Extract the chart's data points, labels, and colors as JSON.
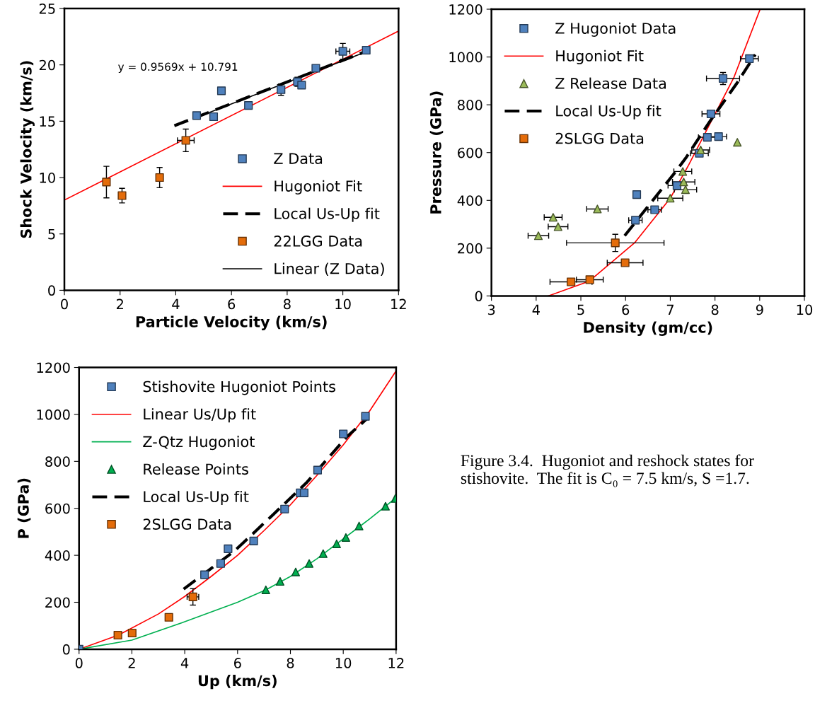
{
  "chart_data": [
    {
      "type": "scatter",
      "xlabel": "Particle Velocity (km/s)",
      "ylabel": "Shock Velocity (km/s)",
      "xlim": [
        0,
        12
      ],
      "xticks": [
        0,
        2,
        4,
        6,
        8,
        10,
        12
      ],
      "ylim": [
        0,
        25
      ],
      "yticks": [
        0,
        5,
        10,
        15,
        20,
        25
      ],
      "grid": false,
      "legend": "bottom right",
      "annotations": [
        "y = 0.9569x + 10.791"
      ],
      "series": [
        {
          "name": "Z Data",
          "type": "scatter",
          "marker": "square",
          "color": "#4f81bd",
          "x": [
            4.75,
            5.36,
            5.64,
            6.61,
            7.78,
            8.37,
            8.52,
            9.03,
            10.0,
            10.84
          ],
          "values": [
            15.5,
            15.4,
            17.7,
            16.4,
            17.8,
            18.5,
            18.2,
            19.7,
            21.2,
            21.3
          ],
          "errors": [
            null,
            null,
            null,
            null,
            0.5,
            0.4,
            null,
            0.3,
            0.7,
            null
          ],
          "xerrors": [
            null,
            null,
            null,
            null,
            null,
            null,
            null,
            null,
            0.25,
            null
          ]
        },
        {
          "name": "Hugoniot Fit",
          "type": "line",
          "line_style": "solid",
          "color": "#ff0000",
          "x": [
            0,
            12
          ],
          "values": [
            8.0,
            23.0
          ]
        },
        {
          "name": "Local Us-Up fit",
          "type": "line",
          "line_style": "dashed",
          "color": "#000000",
          "x": [
            3.95,
            10.94
          ],
          "values": [
            14.6,
            21.3
          ]
        },
        {
          "name": "22LGG Data",
          "type": "scatter",
          "marker": "square",
          "color": "#e46c0a",
          "x": [
            1.51,
            2.07,
            3.42,
            4.36
          ],
          "values": [
            9.6,
            8.4,
            10.0,
            13.3
          ],
          "errors": [
            1.4,
            0.65,
            0.9,
            1.0
          ],
          "xerrors": [
            null,
            null,
            null,
            0.3
          ]
        },
        {
          "name": "Linear (Z Data)",
          "type": "line",
          "line_style": "solid",
          "color": "#000000",
          "x": [
            4.75,
            10.84
          ],
          "values": [
            15.34,
            21.16
          ]
        }
      ]
    },
    {
      "type": "scatter",
      "xlabel": "Density (gm/cc)",
      "ylabel": "Pressure (GPa)",
      "xlim": [
        3,
        10
      ],
      "xticks": [
        3,
        4,
        5,
        6,
        7,
        8,
        9,
        10
      ],
      "ylim": [
        0,
        1200
      ],
      "yticks": [
        0,
        200,
        400,
        600,
        800,
        1000,
        1200
      ],
      "grid": false,
      "legend": "top left",
      "series": [
        {
          "name": "Z Hugoniot Data",
          "type": "scatter",
          "marker": "square",
          "color": "#4f81bd",
          "x": [
            8.77,
            8.18,
            7.91,
            7.83,
            8.08,
            7.65,
            7.15,
            6.25,
            6.65,
            6.22
          ],
          "values": [
            993,
            910,
            762,
            664,
            667,
            597,
            462,
            424,
            361,
            317
          ],
          "errors": [
            null,
            25,
            null,
            null,
            null,
            null,
            null,
            null,
            null,
            null
          ],
          "xerrors": [
            0.2,
            0.37,
            0.2,
            0.2,
            0.18,
            0.2,
            0.2,
            null,
            0.15,
            0.15
          ]
        },
        {
          "name": "Hugoniot Fit",
          "type": "line",
          "line_style": "solid",
          "color": "#ff0000",
          "x": [
            4.27,
            5.19,
            6.2,
            7.0,
            7.41,
            8.42,
            9.01
          ],
          "values": [
            0,
            62,
            222,
            409,
            548,
            913,
            1200
          ]
        },
        {
          "name": "Z Release Data",
          "type": "scatter",
          "marker": "triangle",
          "color": "#9bbb59",
          "x": [
            8.5,
            7.68,
            7.28,
            7.3,
            7.34,
            7.0,
            5.37,
            4.38,
            4.49,
            4.05
          ],
          "values": [
            643,
            611,
            521,
            477,
            445,
            409,
            364,
            329,
            290,
            252
          ],
          "xerrors": [
            null,
            0.2,
            0.2,
            0.25,
            0.25,
            0.28,
            0.24,
            0.2,
            0.22,
            0.23
          ]
        },
        {
          "name": "Local Us-Up fit",
          "type": "line",
          "line_style": "dashed",
          "color": "#000000",
          "x": [
            5.98,
            6.52,
            7.09,
            7.36,
            7.88,
            8.5,
            8.9
          ],
          "values": [
            252,
            379,
            513,
            581,
            729,
            893,
            1010
          ]
        },
        {
          "name": "2SLGG Data",
          "type": "scatter",
          "marker": "square",
          "color": "#e46c0a",
          "x": [
            5.77,
            5.99,
            5.2,
            4.78
          ],
          "values": [
            222,
            139,
            68,
            59
          ],
          "errors": [
            36,
            null,
            null,
            null
          ],
          "xerrors": [
            1.09,
            0.4,
            0.3,
            0.47
          ]
        }
      ]
    },
    {
      "type": "scatter",
      "xlabel": "Up (km/s)",
      "ylabel": "P (GPa)",
      "xlim": [
        0,
        12
      ],
      "xticks": [
        0,
        2,
        4,
        6,
        8,
        10,
        12
      ],
      "ylim": [
        0,
        1200
      ],
      "yticks": [
        0,
        200,
        400,
        600,
        800,
        1000,
        1200
      ],
      "grid": false,
      "legend": "top left",
      "annotations": [
        "Figure 3.4.  Hugoniot and reshock states for stishovite.  The fit is C₀ = 7.5 km/s, S =1.7."
      ],
      "series": [
        {
          "name": "Stishovite Hugoniot Points",
          "type": "scatter",
          "marker": "square",
          "color": "#4f81bd",
          "x": [
            0,
            4.75,
            5.36,
            5.64,
            6.61,
            7.78,
            8.37,
            8.52,
            9.03,
            10.0,
            10.84
          ],
          "values": [
            0,
            317,
            365,
            428,
            461,
            597,
            666,
            666,
            763,
            917,
            992
          ]
        },
        {
          "name": "Linear Us/Up fit",
          "type": "line",
          "line_style": "solid",
          "color": "#ff0000",
          "x": [
            0,
            1.5,
            3,
            4,
            5,
            6,
            7,
            8,
            9,
            10,
            11,
            12
          ],
          "values": [
            0,
            61,
            150,
            225,
            310,
            400,
            505,
            615,
            740,
            870,
            1015,
            1185
          ]
        },
        {
          "name": "Z-Qtz Hugoniot",
          "type": "line",
          "line_style": "solid",
          "color": "#00b050",
          "x": [
            0,
            2,
            4,
            6,
            7.07,
            8,
            9,
            10,
            11,
            12
          ],
          "values": [
            0,
            39,
            117,
            200,
            253,
            310,
            385,
            470,
            555,
            645
          ]
        },
        {
          "name": "Release Points",
          "type": "scatter",
          "marker": "triangle",
          "color": "#00b050",
          "x": [
            7.07,
            7.61,
            8.2,
            8.71,
            9.24,
            9.75,
            10.1,
            10.6,
            11.6,
            11.97
          ],
          "values": [
            253,
            289,
            329,
            365,
            407,
            449,
            476,
            525,
            609,
            642
          ]
        },
        {
          "name": "Local Us-Up fit",
          "type": "line",
          "line_style": "dashed",
          "color": "#000000",
          "x": [
            3.96,
            5.92,
            7.37,
            8.6,
            10.13,
            10.88
          ],
          "values": [
            256,
            422,
            576,
            708,
            904,
            980
          ]
        },
        {
          "name": "2SLGG Data",
          "type": "scatter",
          "marker": "square",
          "color": "#e46c0a",
          "x": [
            1.47,
            2.01,
            3.4,
            4.31
          ],
          "values": [
            60,
            69,
            136,
            223
          ],
          "errors": [
            null,
            null,
            null,
            35
          ],
          "xerrors": [
            null,
            null,
            null,
            0.22
          ]
        }
      ]
    }
  ]
}
